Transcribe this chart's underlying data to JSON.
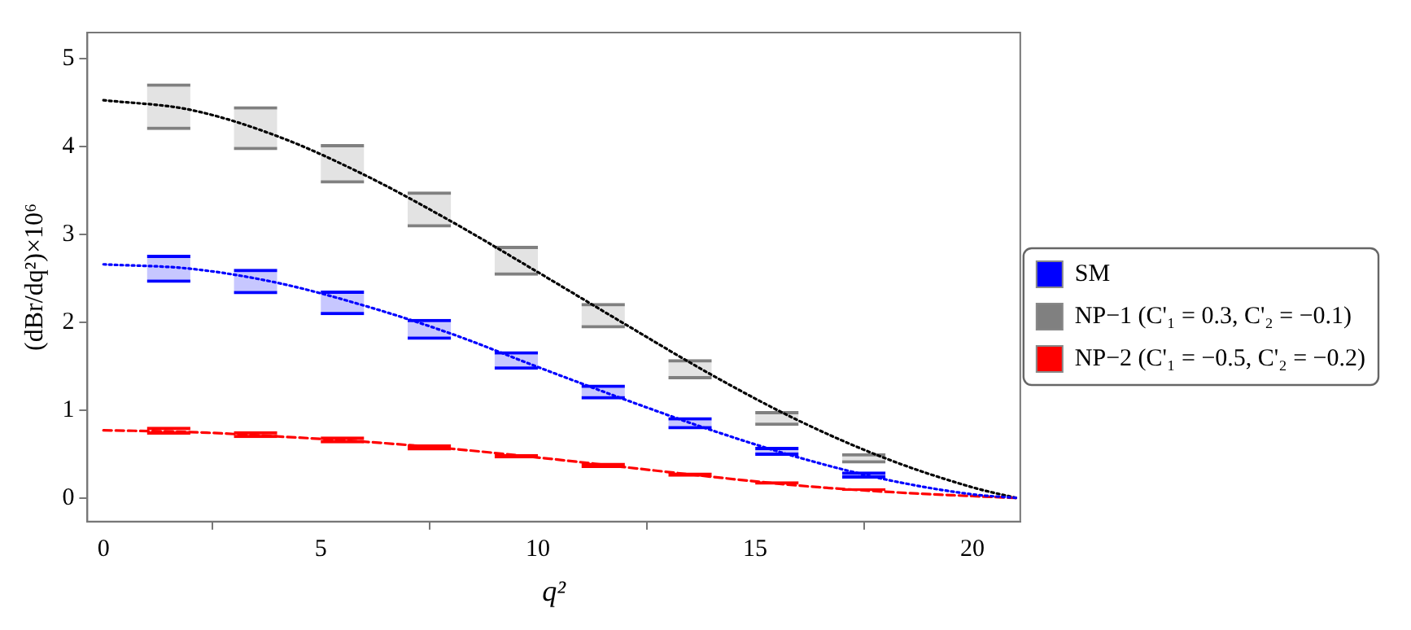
{
  "chart_data": {
    "type": "bar",
    "xlabel": "q²",
    "ylabel": "(dBr/dq²)×10⁶",
    "legend": "right",
    "xlim": [
      -0.37,
      21.1
    ],
    "ylim": [
      -0.27,
      5.3
    ],
    "xticks": [
      0,
      5,
      10,
      15,
      20
    ],
    "yticks": [
      0,
      1,
      2,
      3,
      4,
      5
    ],
    "series": [
      {
        "type": "line",
        "color": "#000000",
        "line_style": "dotted",
        "x": [
          0,
          2,
          4,
          6,
          8,
          10,
          12,
          14,
          16,
          18,
          20,
          21
        ],
        "values": [
          4.53,
          4.42,
          4.12,
          3.68,
          3.15,
          2.57,
          1.98,
          1.4,
          0.88,
          0.45,
          0.12,
          0
        ]
      },
      {
        "type": "line",
        "color": "#0000ff",
        "line_style": "dotted",
        "x": [
          0,
          2,
          4,
          6,
          8,
          10,
          12,
          14,
          16,
          18,
          20,
          21
        ],
        "values": [
          2.66,
          2.61,
          2.45,
          2.19,
          1.87,
          1.49,
          1.12,
          0.77,
          0.46,
          0.21,
          0.04,
          0
        ]
      },
      {
        "type": "line",
        "color": "#ff0000",
        "line_style": "dashed",
        "x": [
          0,
          2,
          4,
          6,
          8,
          10,
          12,
          14,
          16,
          18,
          20,
          21
        ],
        "values": [
          0.77,
          0.75,
          0.7,
          0.64,
          0.56,
          0.46,
          0.35,
          0.24,
          0.14,
          0.07,
          0.02,
          0
        ]
      },
      {
        "name": "SM",
        "color": "#0000ff",
        "x": [
          1.5,
          3.5,
          5.5,
          7.5,
          9.5,
          11.5,
          13.5,
          15.5,
          17.5
        ],
        "base": [
          2.45,
          2.32,
          2.08,
          1.8,
          1.46,
          1.12,
          0.78,
          0.48,
          0.22
        ],
        "values": [
          0.32,
          0.29,
          0.28,
          0.24,
          0.21,
          0.17,
          0.14,
          0.1,
          0.08
        ]
      },
      {
        "name": "NP−1 (C'₁ = 0.3, C'₂ = −0.1)",
        "color": "#808080",
        "x": [
          1.5,
          3.5,
          5.5,
          7.5,
          9.5,
          11.5,
          13.5,
          15.5,
          17.5
        ],
        "base": [
          4.19,
          3.96,
          3.58,
          3.08,
          2.53,
          1.93,
          1.35,
          0.82,
          0.39
        ],
        "values": [
          0.53,
          0.5,
          0.45,
          0.41,
          0.34,
          0.29,
          0.23,
          0.17,
          0.12
        ]
      },
      {
        "name": "NP−2 (C'₁ = −0.5, C'₂ = −0.2)",
        "color": "#ff0000",
        "x": [
          1.5,
          3.5,
          5.5,
          7.5,
          9.5,
          11.5,
          13.5,
          15.5,
          17.5
        ],
        "base": [
          0.72,
          0.68,
          0.62,
          0.54,
          0.45,
          0.34,
          0.24,
          0.15,
          0.08
        ],
        "values": [
          0.09,
          0.08,
          0.08,
          0.07,
          0.05,
          0.06,
          0.05,
          0.04,
          0.03
        ]
      }
    ]
  }
}
